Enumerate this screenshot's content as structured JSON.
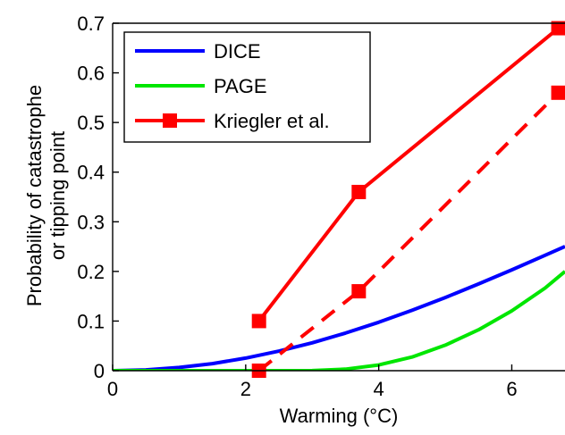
{
  "chart_data": {
    "type": "line",
    "xlabel": "Warming (°C)",
    "ylabel_lines": [
      "Probability of catastrophe",
      "or tipping point"
    ],
    "xlim": [
      0,
      6.8
    ],
    "ylim": [
      0,
      0.7
    ],
    "xticks": [
      0,
      2,
      4,
      6
    ],
    "yticks": [
      0,
      0.1,
      0.2,
      0.3,
      0.4,
      0.5,
      0.6,
      0.7
    ],
    "xtick_labels": [
      "0",
      "2",
      "4",
      "6"
    ],
    "ytick_labels": [
      "0",
      "0.1",
      "0.2",
      "0.3",
      "0.4",
      "0.5",
      "0.6",
      "0.7"
    ],
    "grid": false,
    "legend_position": "top-left",
    "series": [
      {
        "name": "DICE",
        "color": "#0000ff",
        "style": "solid",
        "marker": "none",
        "x": [
          0,
          0.5,
          1,
          1.5,
          2,
          2.5,
          3,
          3.5,
          4,
          4.5,
          5,
          5.5,
          6,
          6.5,
          6.8
        ],
        "y": [
          0,
          0.0016,
          0.0064,
          0.0143,
          0.0254,
          0.0394,
          0.0562,
          0.0757,
          0.0976,
          0.1216,
          0.1474,
          0.1747,
          0.2032,
          0.2325,
          0.2503
        ]
      },
      {
        "name": "PAGE",
        "color": "#00e600",
        "style": "solid",
        "marker": "none",
        "x": [
          0,
          1,
          2,
          2.5,
          3,
          3.5,
          4,
          4.5,
          5,
          5.5,
          6,
          6.5,
          6.8
        ],
        "y": [
          0,
          0,
          0,
          0,
          0.0002,
          0.003,
          0.0115,
          0.0275,
          0.0515,
          0.0825,
          0.1205,
          0.1665,
          0.2
        ]
      },
      {
        "name": "Kriegler et al.",
        "color": "#ff0000",
        "style": "solid",
        "marker": "square",
        "x": [
          2.2,
          3.7,
          6.7
        ],
        "y": [
          0.1,
          0.36,
          0.69
        ]
      },
      {
        "legend": false,
        "color": "#ff0000",
        "style": "dashed",
        "marker": "square",
        "x": [
          2.2,
          3.7,
          6.7
        ],
        "y": [
          0,
          0.16,
          0.56
        ]
      }
    ]
  }
}
